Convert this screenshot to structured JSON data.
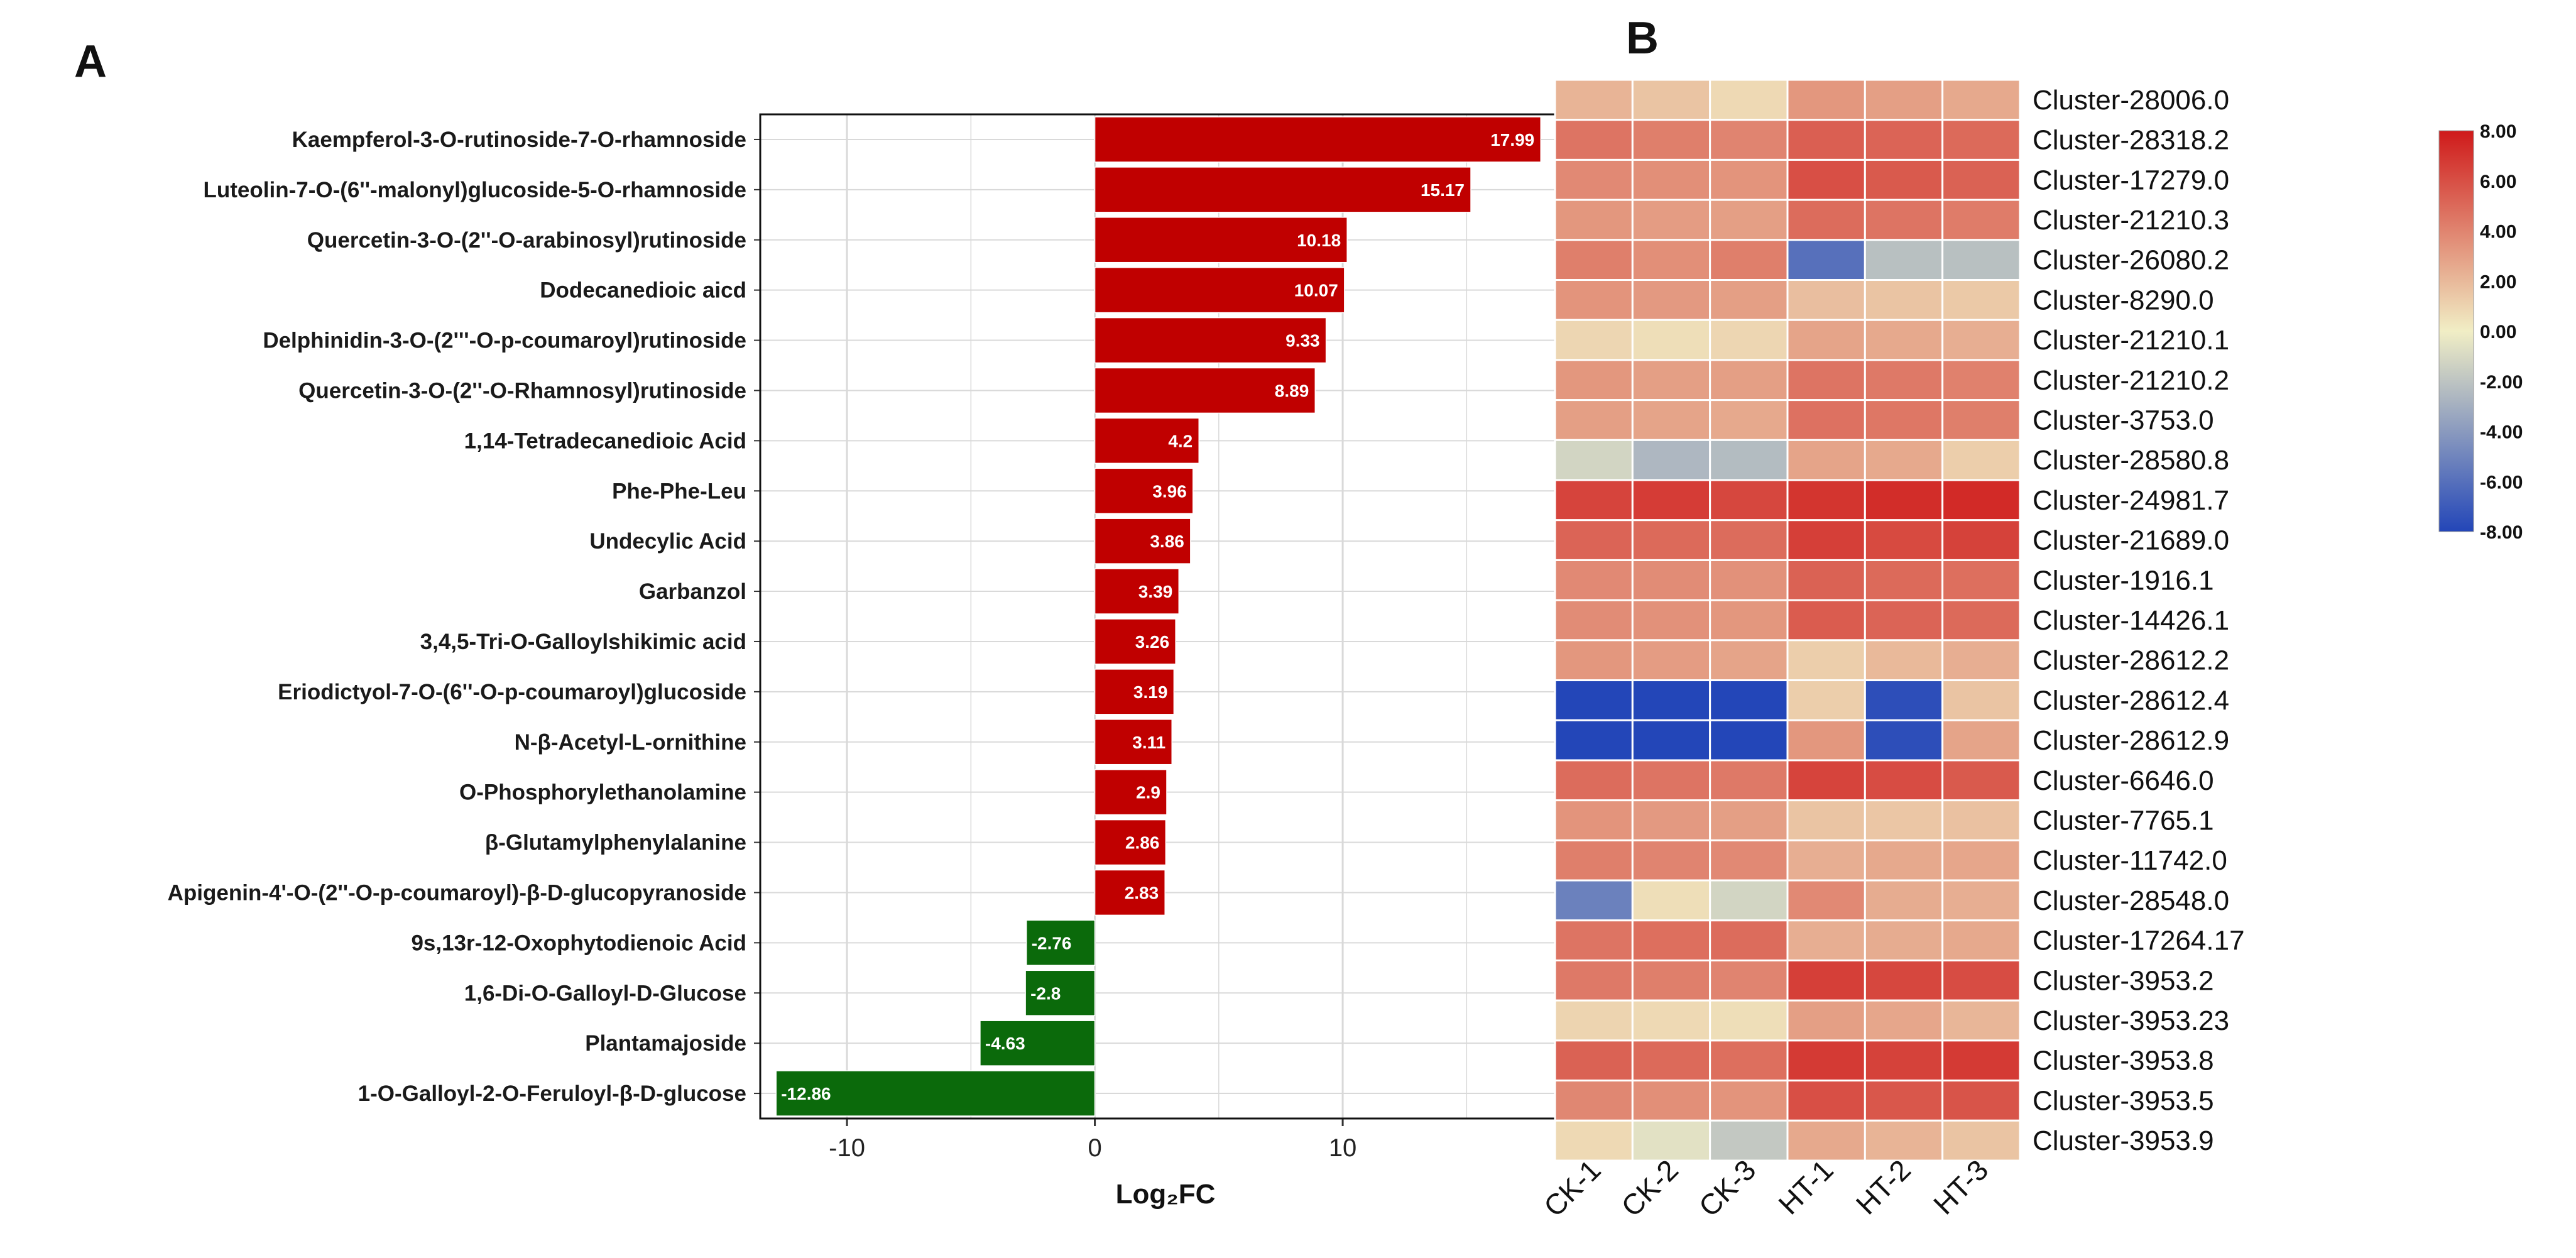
{
  "panels": {
    "a_label": "A",
    "b_label": "B"
  },
  "colors": {
    "positive": "#c00000",
    "negative": "#0b6a0b",
    "grid": "#d9d9d9",
    "heat_low": "#2346b8",
    "heat_mid": "#f1eec5",
    "heat_high": "#cf1a1a"
  },
  "chart_data": [
    {
      "type": "bar",
      "orientation": "horizontal",
      "title": "",
      "xlabel": "Log₂FC",
      "ylabel": "",
      "xlim": [
        -13.5,
        19.2
      ],
      "xticks": [
        -10,
        0,
        10
      ],
      "categories": [
        "Kaempferol-3-O-rutinoside-7-O-rhamnoside",
        "Luteolin-7-O-(6''-malonyl)glucoside-5-O-rhamnoside",
        "Quercetin-3-O-(2''-O-arabinosyl)rutinoside",
        "Dodecanedioic aicd",
        "Delphinidin-3-O-(2'''-O-p-coumaroyl)rutinoside",
        "Quercetin-3-O-(2''-O-Rhamnosyl)rutinoside",
        "1,14-Tetradecanedioic Acid",
        "Phe-Phe-Leu",
        "Undecylic Acid",
        "Garbanzol",
        "3,4,5-Tri-O-Galloylshikimic acid",
        "Eriodictyol-7-O-(6''-O-p-coumaroyl)glucoside",
        "N-β-Acetyl-L-ornithine",
        "O-Phosphorylethanolamine",
        "β-Glutamylphenylalanine",
        "Apigenin-4'-O-(2''-O-p-coumaroyl)-β-D-glucopyranoside",
        "9s,13r-12-Oxophytodienoic Acid",
        "1,6-Di-O-Galloyl-D-Glucose",
        "Plantamajoside",
        "1-O-Galloyl-2-O-Feruloyl-β-D-glucose"
      ],
      "values": [
        17.99,
        15.17,
        10.18,
        10.07,
        9.33,
        8.89,
        4.2,
        3.96,
        3.86,
        3.39,
        3.26,
        3.19,
        3.11,
        2.9,
        2.86,
        2.83,
        -2.76,
        -2.8,
        -4.63,
        -12.86
      ],
      "value_labels": [
        "17.99",
        "15.17",
        "10.18",
        "10.07",
        "9.33",
        "8.89",
        "4.2",
        "3.96",
        "3.86",
        "3.39",
        "3.26",
        "3.19",
        "3.11",
        "2.9",
        "2.86",
        "2.83",
        "-2.76",
        "-2.8",
        "-4.63",
        "-12.86"
      ]
    },
    {
      "type": "heatmap",
      "title": "",
      "columns": [
        "CK-1",
        "CK-2",
        "CK-3",
        "HT-1",
        "HT-2",
        "HT-3"
      ],
      "rows": [
        "Cluster-28006.0",
        "Cluster-28318.2",
        "Cluster-17279.0",
        "Cluster-21210.3",
        "Cluster-26080.2",
        "Cluster-8290.0",
        "Cluster-21210.1",
        "Cluster-21210.2",
        "Cluster-3753.0",
        "Cluster-28580.8",
        "Cluster-24981.7",
        "Cluster-21689.0",
        "Cluster-1916.1",
        "Cluster-14426.1",
        "Cluster-28612.2",
        "Cluster-28612.4",
        "Cluster-28612.9",
        "Cluster-6646.0",
        "Cluster-7765.1",
        "Cluster-11742.0",
        "Cluster-28548.0",
        "Cluster-17264.17",
        "Cluster-3953.2",
        "Cluster-3953.23",
        "Cluster-3953.8",
        "Cluster-3953.5",
        "Cluster-3953.9"
      ],
      "values": [
        [
          2.2,
          1.6,
          0.8,
          3.3,
          3.0,
          2.6
        ],
        [
          4.6,
          4.2,
          4.0,
          5.4,
          5.2,
          5.0
        ],
        [
          3.8,
          3.6,
          3.4,
          6.0,
          5.6,
          5.3
        ],
        [
          3.3,
          3.1,
          3.0,
          4.9,
          4.6,
          4.3
        ],
        [
          4.2,
          3.6,
          4.2,
          -6.0,
          -2.2,
          -2.2
        ],
        [
          3.4,
          3.2,
          3.0,
          1.8,
          1.6,
          1.4
        ],
        [
          0.9,
          0.6,
          0.9,
          2.8,
          2.6,
          2.4
        ],
        [
          3.3,
          3.0,
          3.0,
          4.6,
          4.4,
          4.1
        ],
        [
          3.0,
          2.8,
          2.6,
          4.7,
          4.5,
          4.2
        ],
        [
          -1.2,
          -2.6,
          -2.4,
          2.8,
          2.6,
          1.2
        ],
        [
          6.4,
          6.7,
          6.3,
          7.0,
          7.3,
          7.4
        ],
        [
          5.2,
          5.0,
          4.9,
          6.6,
          6.2,
          6.5
        ],
        [
          3.8,
          3.7,
          3.5,
          5.3,
          5.0,
          4.8
        ],
        [
          3.7,
          3.5,
          3.3,
          5.5,
          5.2,
          5.0
        ],
        [
          3.3,
          3.1,
          2.8,
          1.2,
          2.0,
          2.4
        ],
        [
          -8.0,
          -8.0,
          -8.0,
          1.2,
          -7.6,
          1.6
        ],
        [
          -8.0,
          -8.0,
          -8.0,
          3.3,
          -7.6,
          2.8
        ],
        [
          4.9,
          4.6,
          4.4,
          6.4,
          6.1,
          5.6
        ],
        [
          3.4,
          3.2,
          3.0,
          1.6,
          1.5,
          1.7
        ],
        [
          4.2,
          4.0,
          3.8,
          2.4,
          2.6,
          2.7
        ],
        [
          -5.2,
          0.6,
          -1.2,
          3.8,
          2.5,
          2.4
        ],
        [
          4.6,
          4.8,
          4.9,
          2.4,
          2.5,
          2.6
        ],
        [
          4.4,
          4.2,
          4.0,
          6.6,
          6.3,
          6.1
        ],
        [
          1.0,
          0.8,
          0.6,
          3.0,
          2.7,
          2.1
        ],
        [
          5.3,
          5.0,
          4.8,
          6.8,
          6.5,
          6.8
        ],
        [
          3.9,
          3.6,
          3.4,
          6.0,
          5.7,
          5.8
        ],
        [
          0.8,
          -0.6,
          -1.8,
          2.6,
          2.2,
          1.6
        ]
      ],
      "legend": {
        "min": -8,
        "max": 8,
        "ticks": [
          "8.00",
          "6.00",
          "4.00",
          "2.00",
          "0.00",
          "-2.00",
          "-4.00",
          "-6.00",
          "-8.00"
        ]
      }
    }
  ]
}
